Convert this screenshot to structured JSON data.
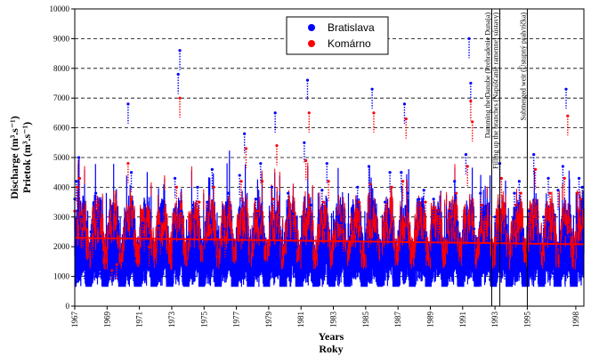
{
  "chart_data": {
    "type": "scatter",
    "title": "",
    "xlabel": [
      "Years",
      "Roky"
    ],
    "ylabel": [
      "Discharge (m³.s⁻¹)",
      "Prietok (m³.s⁻¹)"
    ],
    "xlim": [
      1967,
      1998.5
    ],
    "ylim": [
      0,
      10000
    ],
    "yticks": [
      0,
      1000,
      2000,
      3000,
      4000,
      5000,
      6000,
      7000,
      8000,
      9000,
      10000
    ],
    "xticks": [
      "1967",
      "1969",
      "1971",
      "1973",
      "1975",
      "1977",
      "1979",
      "1981",
      "1983",
      "1985",
      "1987",
      "1989",
      "1991",
      "1993",
      "1995",
      "1998"
    ],
    "grid": "horizontal dashed",
    "legend": {
      "placement": "top-center",
      "entries": [
        "Bratislava",
        "Komárno"
      ]
    },
    "series": [
      {
        "name": "Bratislava",
        "color": "#0000ff",
        "x": [
          1967.0,
          1967.1,
          1967.25,
          1967.4,
          1967.6,
          1968.0,
          1968.3,
          1968.6,
          1969.2,
          1969.5,
          1969.8,
          1970.1,
          1970.3,
          1970.5,
          1970.7,
          1971.2,
          1971.5,
          1971.8,
          1972.2,
          1972.5,
          1972.8,
          1973.2,
          1973.4,
          1973.5,
          1973.6,
          1973.9,
          1974.3,
          1974.6,
          1974.9,
          1975.2,
          1975.5,
          1975.8,
          1976.2,
          1976.5,
          1976.8,
          1977.2,
          1977.5,
          1977.8,
          1978.2,
          1978.5,
          1978.8,
          1979.2,
          1979.4,
          1979.6,
          1980.2,
          1980.5,
          1980.8,
          1981.2,
          1981.4,
          1981.6,
          1981.9,
          1982.3,
          1982.6,
          1982.9,
          1983.2,
          1983.5,
          1983.8,
          1984.2,
          1984.5,
          1984.8,
          1985.2,
          1985.4,
          1985.7,
          1986.2,
          1986.5,
          1986.8,
          1987.2,
          1987.4,
          1987.6,
          1987.9,
          1988.3,
          1988.6,
          1988.9,
          1989.2,
          1989.5,
          1989.8,
          1990.2,
          1990.5,
          1990.8,
          1991.2,
          1991.4,
          1991.5,
          1991.7,
          1992.1,
          1992.4,
          1992.7,
          1993.0,
          1993.3,
          1993.6,
          1993.9,
          1994.2,
          1994.5,
          1994.8,
          1995.1,
          1995.4,
          1995.7,
          1996.0,
          1996.3,
          1996.6,
          1996.9,
          1997.2,
          1997.4,
          1997.6,
          1997.9,
          1998.2,
          1998.4
        ],
        "values": [
          3600,
          4200,
          5000,
          3000,
          1500,
          2500,
          3800,
          1100,
          1200,
          1500,
          1000,
          900,
          6800,
          4500,
          1600,
          2800,
          2100,
          800,
          2700,
          3500,
          1000,
          4300,
          7800,
          8600,
          3200,
          1300,
          3400,
          4000,
          1200,
          3500,
          4600,
          1200,
          2600,
          3800,
          1000,
          4400,
          5800,
          1400,
          3600,
          4800,
          1200,
          4000,
          6500,
          2200,
          3800,
          3100,
          1100,
          5500,
          7600,
          3400,
          1200,
          3900,
          4800,
          1000,
          3000,
          2800,
          900,
          3200,
          4000,
          1100,
          4700,
          7300,
          2300,
          3500,
          4500,
          1200,
          4500,
          6800,
          3800,
          1100,
          3600,
          3900,
          1100,
          3600,
          3100,
          900,
          3200,
          4200,
          1000,
          5100,
          9000,
          7500,
          2600,
          3800,
          3100,
          900,
          3000,
          4800,
          1300,
          1000,
          3800,
          4200,
          1100,
          3200,
          5100,
          1300,
          3000,
          4300,
          1100,
          3900,
          4700,
          7300,
          2400,
          900,
          4300,
          4000
        ]
      },
      {
        "name": "Komárno",
        "color": "#ff0000",
        "x": [
          1967.0,
          1967.15,
          1967.3,
          1967.5,
          1968.1,
          1968.4,
          1969.3,
          1969.6,
          1970.3,
          1970.5,
          1971.3,
          1971.6,
          1972.3,
          1972.6,
          1973.3,
          1973.5,
          1973.7,
          1974.4,
          1974.7,
          1975.3,
          1975.6,
          1976.3,
          1976.6,
          1977.3,
          1977.6,
          1978.3,
          1978.6,
          1979.3,
          1979.5,
          1980.3,
          1980.6,
          1981.3,
          1981.5,
          1982.4,
          1982.7,
          1983.3,
          1983.6,
          1984.3,
          1984.6,
          1985.3,
          1985.5,
          1986.3,
          1986.6,
          1987.3,
          1987.5,
          1988.4,
          1988.7,
          1989.3,
          1989.6,
          1990.3,
          1990.6,
          1991.3,
          1991.5,
          1991.6,
          1992.2,
          1992.5,
          1993.1,
          1993.4,
          1994.3,
          1994.6,
          1995.2,
          1995.5,
          1996.1,
          1996.4,
          1997.3,
          1997.5,
          1998.1,
          1998.3
        ],
        "values": [
          3200,
          4000,
          4300,
          2600,
          2300,
          3400,
          1200,
          1400,
          4800,
          3600,
          2500,
          2000,
          2400,
          3100,
          4000,
          7000,
          2900,
          3000,
          3500,
          3100,
          4000,
          2300,
          3300,
          4200,
          5300,
          3200,
          4200,
          3600,
          5400,
          3400,
          2800,
          4900,
          6500,
          3500,
          4200,
          2700,
          2500,
          2900,
          3500,
          4100,
          6500,
          3200,
          4000,
          4200,
          6300,
          3300,
          3500,
          3300,
          2800,
          3000,
          3800,
          4700,
          6900,
          6200,
          3400,
          2800,
          2700,
          4300,
          3400,
          3800,
          2900,
          4600,
          2700,
          3800,
          4300,
          6400,
          3800,
          3600
        ]
      },
      {
        "name": "",
        "color": "#ff0000",
        "type": "line",
        "x": [
          1967,
          1998.5
        ],
        "values": [
          2300,
          2080
        ]
      }
    ],
    "annotations": [
      {
        "text": "Damming the Danube (Prehradenie Dunaja)",
        "x": 1992.8
      },
      {
        "text": "Filling up the branches (Napúšťanie ramennej sústavy)",
        "x": 1993.3
      },
      {
        "text": "Submerged weir (Ústupný prah/ríčka)",
        "x": 1995.0
      }
    ]
  }
}
